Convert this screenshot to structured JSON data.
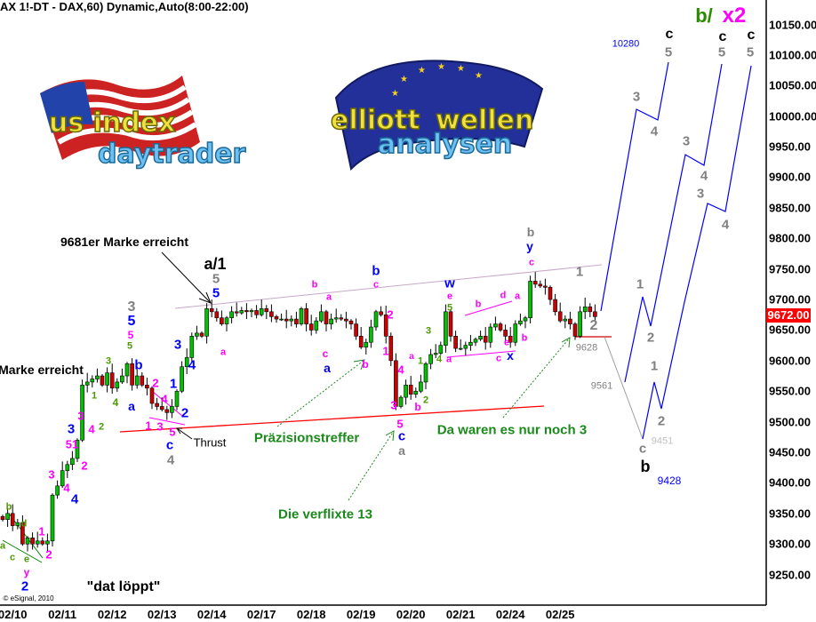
{
  "header": {
    "title": "AX 1!-DT - DAX,60) Dynamic,Auto(8:00-22:00)"
  },
  "logos": {
    "left": "us index daytrader",
    "right": "elliott wellen analysen"
  },
  "colors": {
    "up": "#00c000",
    "down": "#cc0000",
    "projection": "#0000ff",
    "trend_red": "#ff0000",
    "channel": "#c8a8c8",
    "last_price_bg": "#ff0000"
  },
  "chart_data": {
    "type": "candlestick",
    "title": "AX 1!-DT - DAX,60) Dynamic,Auto(8:00-22:00)",
    "ylim": [
      9200,
      10190
    ],
    "yticks": [
      "10150.00",
      "10100.00",
      "10050.00",
      "10000.00",
      "9950.00",
      "9900.00",
      "9850.00",
      "9800.00",
      "9750.00",
      "9700.00",
      "9650.00",
      "9600.00",
      "9550.00",
      "9500.00",
      "9450.00",
      "9400.00",
      "9350.00",
      "9300.00",
      "9250.00"
    ],
    "xticks": [
      "02/10",
      "02/11",
      "02/12",
      "02/13",
      "02/14",
      "02/17",
      "02/18",
      "02/19",
      "02/20",
      "02/21",
      "02/24",
      "02/25"
    ],
    "last_price": "9672.00",
    "closes": [
      9340,
      9350,
      9330,
      9335,
      9300,
      9310,
      9300,
      9305,
      9300,
      9305,
      9380,
      9395,
      9420,
      9430,
      9440,
      9470,
      9560,
      9565,
      9570,
      9575,
      9560,
      9580,
      9555,
      9565,
      9575,
      9595,
      9560,
      9575,
      9560,
      9555,
      9530,
      9525,
      9520,
      9515,
      9525,
      9550,
      9590,
      9605,
      9640,
      9645,
      9640,
      9685,
      9680,
      9670,
      9660,
      9670,
      9680,
      9678,
      9682,
      9680,
      9682,
      9675,
      9685,
      9680,
      9672,
      9668,
      9668,
      9665,
      9668,
      9660,
      9685,
      9660,
      9650,
      9665,
      9680,
      9660,
      9668,
      9670,
      9668,
      9665,
      9660,
      9640,
      9622,
      9630,
      9655,
      9680,
      9675,
      9640,
      9600,
      9525,
      9540,
      9560,
      9545,
      9550,
      9565,
      9595,
      9610,
      9612,
      9625,
      9680,
      9640,
      9620,
      9620,
      9625,
      9630,
      9635,
      9640,
      9630,
      9655,
      9660,
      9650,
      9640,
      9630,
      9660,
      9665,
      9670,
      9730,
      9725,
      9722,
      9720,
      9700,
      9680,
      9665,
      9668,
      9660,
      9640,
      9680,
      9688,
      9680,
      9672
    ],
    "grid": false
  },
  "annotations": [
    {
      "text": "9681er Marke erreicht",
      "color": "#000000"
    },
    {
      "text": "a/1",
      "color": "#000000"
    },
    {
      "text": "5",
      "color": "#808080"
    },
    {
      "text": "5",
      "color": "#0000ff"
    },
    {
      "text": "3",
      "color": "#808080"
    },
    {
      "text": "5",
      "color": "#0000ff"
    },
    {
      "text": "5",
      "color": "#ff00ff"
    },
    {
      "text": "5",
      "color": "#4a9a00"
    },
    {
      "text": "Marke erreicht",
      "color": "#000000"
    },
    {
      "text": "3",
      "color": "#4a9a00"
    },
    {
      "text": "b",
      "color": "#0000ff"
    },
    {
      "text": "1",
      "color": "#4a9a00"
    },
    {
      "text": "4",
      "color": "#4a9a00"
    },
    {
      "text": "a",
      "color": "#0000ff"
    },
    {
      "text": "2",
      "color": "#ff00ff"
    },
    {
      "text": "1",
      "color": "#0000ff"
    },
    {
      "text": "4",
      "color": "#ff00ff"
    },
    {
      "text": "2",
      "color": "#0000ff"
    },
    {
      "text": "3",
      "color": "#0000ff"
    },
    {
      "text": "4",
      "color": "#0000ff"
    },
    {
      "text": "a",
      "color": "#ff00ff"
    },
    {
      "text": "3",
      "color": "#ff00ff"
    },
    {
      "text": "4",
      "color": "#ff00ff"
    },
    {
      "text": "2",
      "color": "#4a9a00"
    },
    {
      "text": "3",
      "color": "#0000ff"
    },
    {
      "text": "51",
      "color": "#ff00ff"
    },
    {
      "text": "2",
      "color": "#ff00ff"
    },
    {
      "text": "1",
      "color": "#ff00ff"
    },
    {
      "text": "3",
      "color": "#ff00ff"
    },
    {
      "text": "5",
      "color": "#ff00ff"
    },
    {
      "text": "c",
      "color": "#0000ff"
    },
    {
      "text": "4",
      "color": "#808080"
    },
    {
      "text": "Thrust",
      "color": "#000000"
    },
    {
      "text": "3",
      "color": "#ff00ff"
    },
    {
      "text": "4",
      "color": "#ff00ff"
    },
    {
      "text": "4",
      "color": "#0000ff"
    },
    {
      "text": "1",
      "color": "#ff00ff"
    },
    {
      "text": "2",
      "color": "#ff00ff"
    },
    {
      "text": "b",
      "color": "#4a9a00"
    },
    {
      "text": "d",
      "color": "#4a9a00"
    },
    {
      "text": "a",
      "color": "#4a9a00"
    },
    {
      "text": "c",
      "color": "#4a9a00"
    },
    {
      "text": "e",
      "color": "#4a9a00"
    },
    {
      "text": "y",
      "color": "#ff00ff"
    },
    {
      "text": "2",
      "color": "#0000ff"
    },
    {
      "text": "\"dat löppt\"",
      "color": "#000000"
    },
    {
      "text": "Präzisionstreffer",
      "color": "#1a8a1a"
    },
    {
      "text": "Die verflixte 13",
      "color": "#1a8a1a"
    },
    {
      "text": "5",
      "color": "#ff00ff"
    },
    {
      "text": "c",
      "color": "#0000ff"
    },
    {
      "text": "a",
      "color": "#808080"
    },
    {
      "text": "3",
      "color": "#ff00ff"
    },
    {
      "text": "4",
      "color": "#ff00ff"
    },
    {
      "text": "a",
      "color": "#ff00ff"
    },
    {
      "text": "1",
      "color": "#ff00ff"
    },
    {
      "text": "2",
      "color": "#ff00ff"
    },
    {
      "text": "b",
      "color": "#ff00ff"
    },
    {
      "text": "c",
      "color": "#ff00ff"
    },
    {
      "text": "a",
      "color": "#0000ff"
    },
    {
      "text": "a",
      "color": "#ff00ff"
    },
    {
      "text": "b",
      "color": "#ff00ff"
    },
    {
      "text": "c",
      "color": "#ff00ff"
    },
    {
      "text": "b",
      "color": "#0000ff"
    },
    {
      "text": "b",
      "color": "#ff00ff"
    },
    {
      "text": "2",
      "color": "#4a9a00"
    },
    {
      "text": "1",
      "color": "#4a9a00"
    },
    {
      "text": "3",
      "color": "#4a9a00"
    },
    {
      "text": "4",
      "color": "#4a9a00"
    },
    {
      "text": "a",
      "color": "#ff00ff"
    },
    {
      "text": "w",
      "color": "#0000ff"
    },
    {
      "text": "e",
      "color": "#ff00ff"
    },
    {
      "text": "5",
      "color": "#4a9a00"
    },
    {
      "text": "b",
      "color": "#ff00ff"
    },
    {
      "text": "d",
      "color": "#ff00ff"
    },
    {
      "text": "a",
      "color": "#ff00ff"
    },
    {
      "text": "e",
      "color": "#ff00ff"
    },
    {
      "text": "c",
      "color": "#ff00ff"
    },
    {
      "text": "x",
      "color": "#0000ff"
    },
    {
      "text": "b",
      "color": "#ff00ff"
    },
    {
      "text": "c",
      "color": "#ff00ff"
    },
    {
      "text": "y",
      "color": "#0000ff"
    },
    {
      "text": "b",
      "color": "#808080"
    },
    {
      "text": "1",
      "color": "#808080"
    },
    {
      "text": "2",
      "color": "#808080"
    },
    {
      "text": "9628",
      "color": "#808080"
    },
    {
      "text": "9561",
      "color": "#808080"
    },
    {
      "text": "Da waren es nur noch 3",
      "color": "#1a8a1a"
    },
    {
      "text": "10280",
      "color": "#0000ff"
    },
    {
      "text": "c",
      "color": "#000000"
    },
    {
      "text": "5",
      "color": "#808080"
    },
    {
      "text": "c",
      "color": "#000000"
    },
    {
      "text": "5",
      "color": "#808080"
    },
    {
      "text": "c",
      "color": "#000000"
    },
    {
      "text": "5",
      "color": "#808080"
    },
    {
      "text": "3",
      "color": "#808080"
    },
    {
      "text": "4",
      "color": "#808080"
    },
    {
      "text": "3",
      "color": "#808080"
    },
    {
      "text": "4",
      "color": "#808080"
    },
    {
      "text": "3",
      "color": "#808080"
    },
    {
      "text": "4",
      "color": "#808080"
    },
    {
      "text": "1",
      "color": "#808080"
    },
    {
      "text": "2",
      "color": "#808080"
    },
    {
      "text": "1",
      "color": "#808080"
    },
    {
      "text": "2",
      "color": "#808080"
    },
    {
      "text": "9451",
      "color": "#c0c0c0"
    },
    {
      "text": "c",
      "color": "#808080"
    },
    {
      "text": "b",
      "color": "#000000"
    },
    {
      "text": "9428",
      "color": "#0000ff"
    },
    {
      "text": "b/",
      "color": "#2a8a00"
    },
    {
      "text": "x2",
      "color": "#ff00ff"
    },
    {
      "text": "© eSignal, 2010",
      "color": "#000000"
    }
  ]
}
